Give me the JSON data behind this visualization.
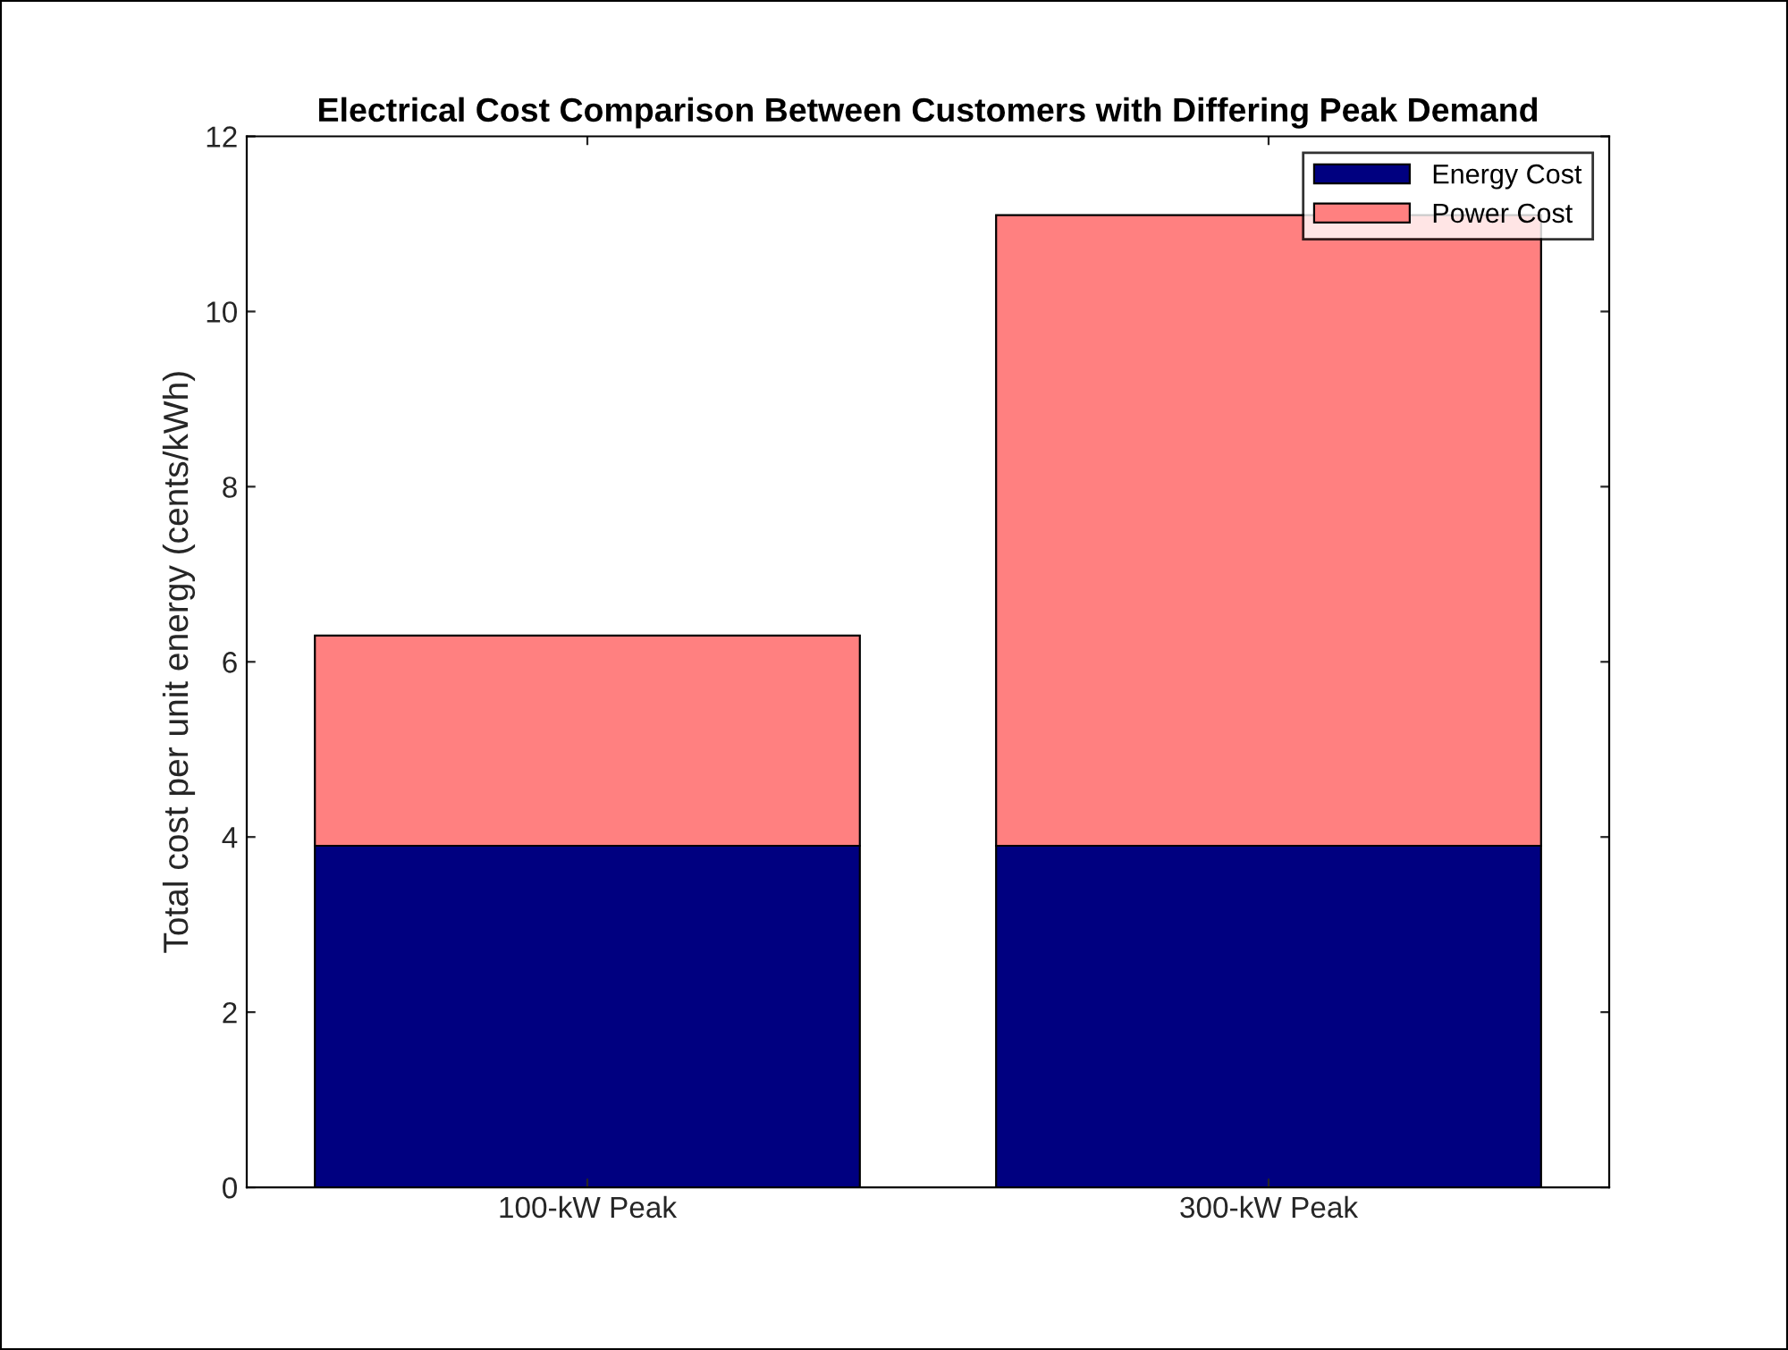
{
  "chart_data": {
    "type": "bar",
    "title": "Electrical Cost Comparison Between Customers with Differing Peak Demand",
    "ylabel": "Total cost per unit energy (cents/kWh)",
    "categories": [
      "100-kW Peak",
      "300-kW Peak"
    ],
    "stacked": true,
    "series": [
      {
        "name": "Energy Cost",
        "color": "#000080",
        "values": [
          3.9,
          3.9
        ]
      },
      {
        "name": "Power Cost",
        "color": "#ff8080",
        "values": [
          2.4,
          7.2
        ]
      }
    ],
    "ylim": [
      0,
      12
    ],
    "yticks": [
      0,
      2,
      4,
      6,
      8,
      10,
      12
    ],
    "grid": false,
    "legend": "top right"
  }
}
